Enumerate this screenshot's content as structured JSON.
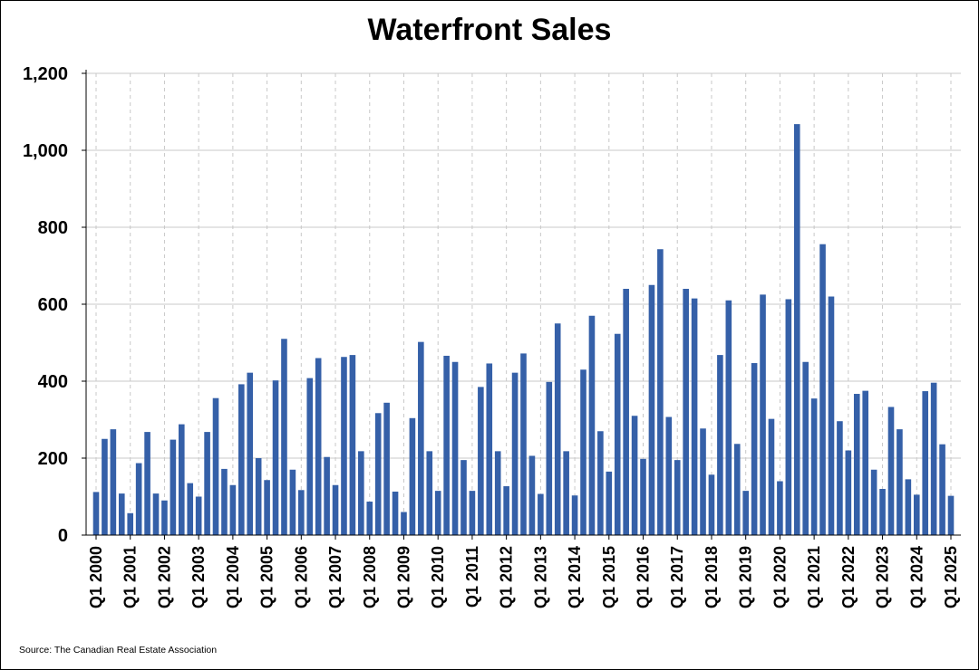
{
  "chart_data": {
    "type": "bar",
    "title": "Waterfront Sales",
    "xlabel": "",
    "ylabel": "",
    "ylim": [
      0,
      1200
    ],
    "yticks": [
      0,
      200,
      400,
      600,
      800,
      1000,
      1200
    ],
    "ytick_labels": [
      "0",
      "200",
      "400",
      "600",
      "800",
      "1,000",
      "1,200"
    ],
    "grid": true,
    "legend": "none",
    "bar_color": "#3560A8",
    "grid_color": "#C8C8C8",
    "tick_labels": [
      "Q1 2000",
      "Q1 2001",
      "Q1 2002",
      "Q1 2003",
      "Q1 2004",
      "Q1 2005",
      "Q1 2006",
      "Q1 2007",
      "Q1 2008",
      "Q1 2009",
      "Q1 2010",
      "Q1 2011",
      "Q1 2012",
      "Q1 2013",
      "Q1 2014",
      "Q1 2015",
      "Q1 2016",
      "Q1 2017",
      "Q1 2018",
      "Q1 2019",
      "Q1 2020",
      "Q1 2021",
      "Q1 2022",
      "Q1 2023",
      "Q1 2024",
      "Q1 2025"
    ],
    "series": [
      {
        "name": "Waterfront Sales",
        "values": [
          112,
          250,
          275,
          108,
          57,
          187,
          268,
          108,
          90,
          248,
          288,
          135,
          100,
          268,
          356,
          172,
          130,
          392,
          422,
          200,
          143,
          402,
          510,
          170,
          117,
          408,
          460,
          203,
          130,
          463,
          468,
          218,
          87,
          317,
          344,
          113,
          60,
          304,
          502,
          218,
          115,
          466,
          450,
          195,
          115,
          385,
          446,
          218,
          127,
          422,
          472,
          206,
          107,
          398,
          550,
          218,
          103,
          430,
          570,
          270,
          165,
          523,
          640,
          310,
          198,
          650,
          743,
          307,
          195,
          640,
          615,
          277,
          157,
          468,
          610,
          237,
          115,
          447,
          625,
          302,
          140,
          613,
          1068,
          450,
          355,
          756,
          620,
          296,
          220,
          367,
          375,
          170,
          120,
          333,
          275,
          145,
          105,
          374,
          396,
          236,
          102
        ]
      }
    ]
  },
  "source_note": "Source: The Canadian Real Estate Association"
}
